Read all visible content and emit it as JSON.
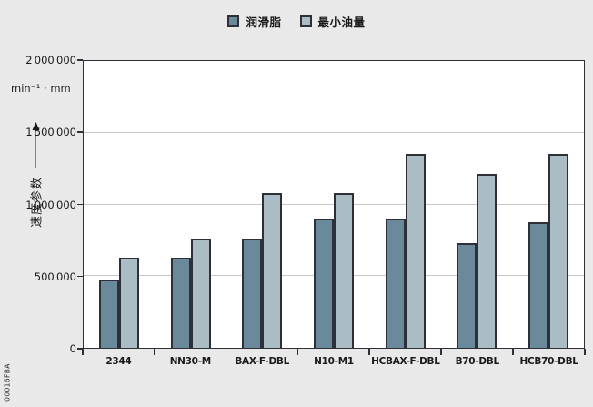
{
  "figure_id": "00016FBA",
  "legend": {
    "items": [
      {
        "label": "润滑脂",
        "color": "#6a8a9b"
      },
      {
        "label": "最小油量",
        "color": "#aabcc4"
      }
    ]
  },
  "y_axis": {
    "unit": "min⁻¹ · mm",
    "title": "速度参数"
  },
  "chart_data": {
    "type": "bar",
    "title": "",
    "categories": [
      "2344",
      "NN30-M",
      "BAX-F-DBL",
      "N10-M1",
      "HCBAX-F-DBL",
      "B70-DBL",
      "HCB70-DBL"
    ],
    "series": [
      {
        "name": "润滑脂",
        "color": "#6a8a9b",
        "values": [
          475000,
          630000,
          765000,
          900000,
          900000,
          730000,
          875000
        ]
      },
      {
        "name": "最小油量",
        "color": "#aabcc4",
        "values": [
          630000,
          765000,
          1080000,
          1080000,
          1350000,
          1215000,
          1350000
        ]
      }
    ],
    "xlabel": "",
    "ylabel": "速度参数",
    "y_unit": "min⁻¹ · mm",
    "ylim": [
      0,
      2000000
    ],
    "ytick_interval": 500000,
    "yticks": [
      {
        "value": 0,
        "label": "0"
      },
      {
        "value": 500000,
        "label": "500 000"
      },
      {
        "value": 1000000,
        "label": "1 000 000"
      },
      {
        "value": 1500000,
        "label": "1 500 000"
      },
      {
        "value": 2000000,
        "label": "2 000 000"
      }
    ],
    "grid": true,
    "legend_position": "top"
  }
}
